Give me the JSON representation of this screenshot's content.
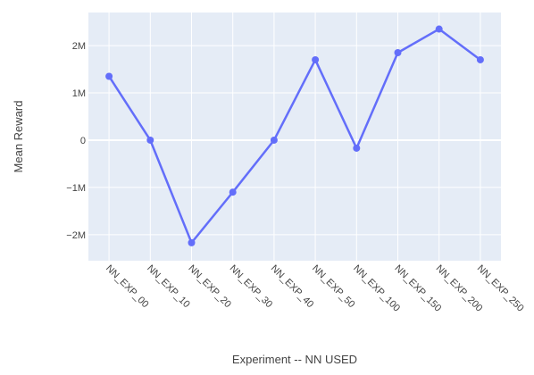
{
  "chart_data": {
    "type": "line",
    "xlabel": "Experiment -- NN USED",
    "ylabel": "Mean Reward",
    "categories": [
      "NN_EXP_00",
      "NN_EXP_10",
      "NN_EXP_20",
      "NN_EXP_30",
      "NN_EXP_40",
      "NN_EXP_50",
      "NN_EXP_100",
      "NN_EXP_150",
      "NN_EXP_200",
      "NN_EXP_250"
    ],
    "values": [
      1350000,
      0,
      -2170000,
      -1100000,
      0,
      1700000,
      -170000,
      1850000,
      2350000,
      1700000
    ],
    "ylim": [
      -2550000,
      2700000
    ],
    "yticks": [
      {
        "value": 2000000,
        "label": "2M"
      },
      {
        "value": 1000000,
        "label": "1M"
      },
      {
        "value": 0,
        "label": "0"
      },
      {
        "value": -1000000,
        "label": "−1M"
      },
      {
        "value": -2000000,
        "label": "−2M"
      }
    ],
    "grid": true,
    "colors": {
      "line": "#636efa",
      "plot_bg": "#e5ecf6",
      "grid": "#ffffff"
    }
  }
}
